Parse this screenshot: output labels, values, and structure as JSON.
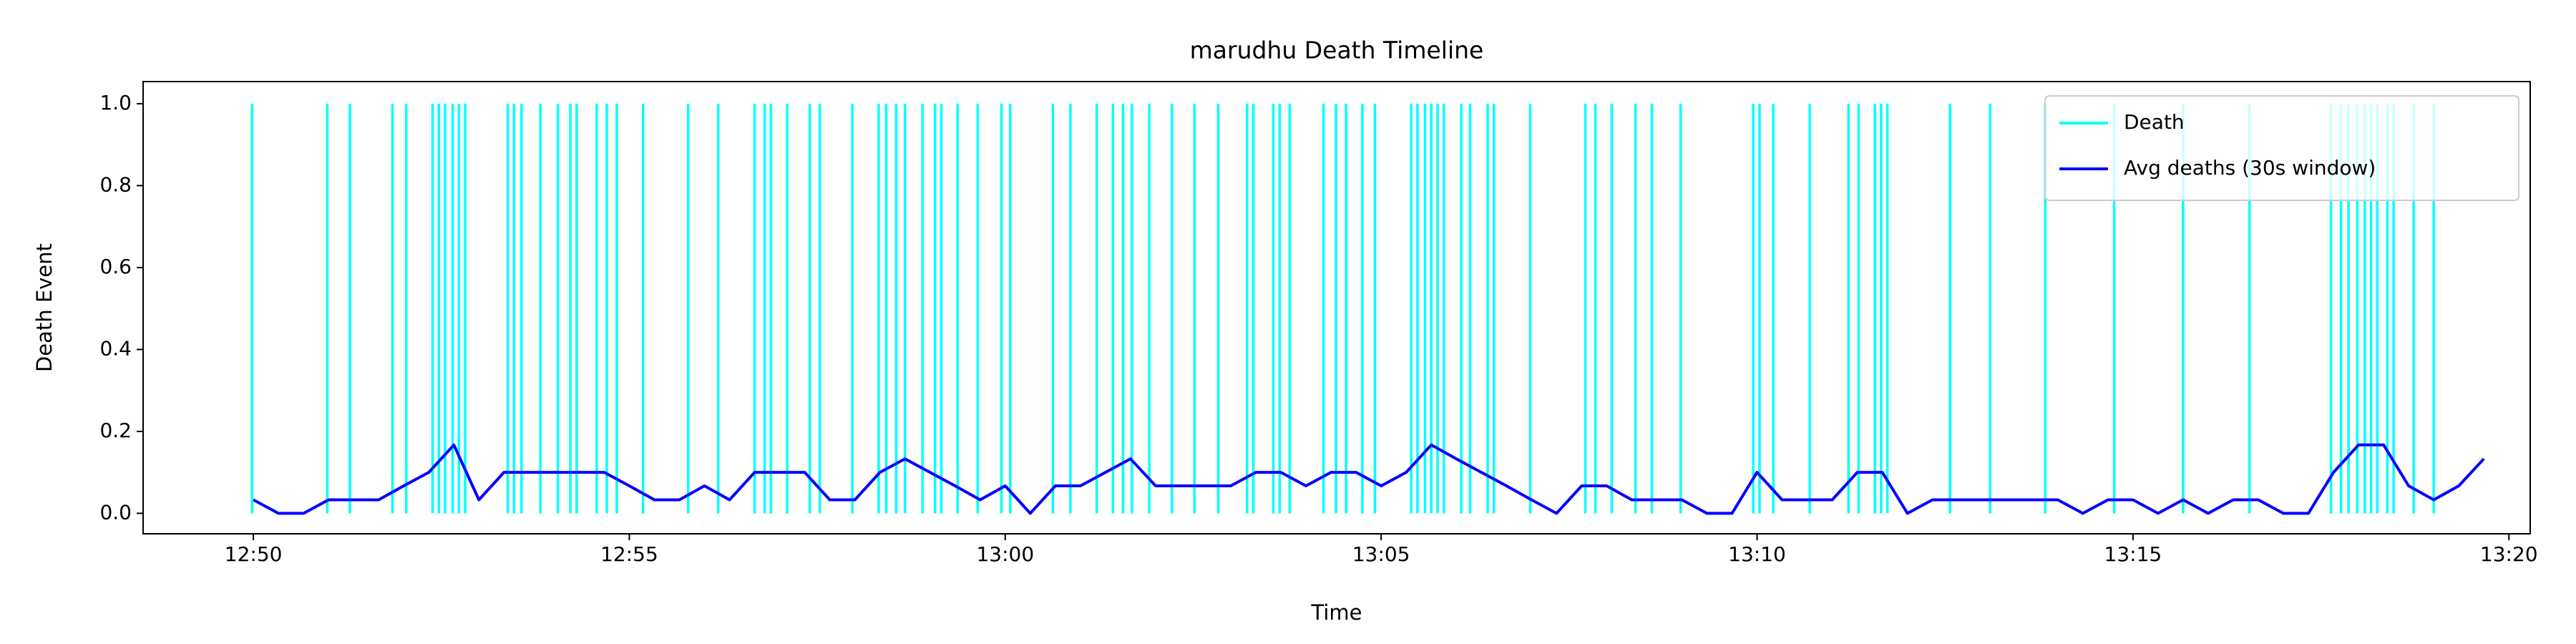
{
  "chart_data": {
    "type": "line",
    "title": "marudhu Death Timeline",
    "x_label": "Time",
    "y_label": "Death Event",
    "xlim": [
      "12:48:32",
      "13:20:17"
    ],
    "xticks": [
      "12:50",
      "12:55",
      "13:00",
      "13:05",
      "13:10",
      "13:15",
      "13:20"
    ],
    "ylim": [
      -0.05,
      1.054
    ],
    "yticks": [
      {
        "value": 0,
        "label": "0.0"
      },
      {
        "value": 0.2,
        "label": "0.2"
      },
      {
        "value": 0.4,
        "label": "0.4"
      },
      {
        "value": 0.6,
        "label": "0.6"
      },
      {
        "value": 0.8,
        "label": "0.8"
      },
      {
        "value": 1,
        "label": "1.0"
      }
    ],
    "grid": false,
    "legend": "upper right",
    "series": [
      {
        "name": "Death",
        "color": "#00ffff",
        "type": "vlines",
        "x": [
          "12:49:59",
          "12:50:59",
          "12:51:17",
          "12:51:51",
          "12:52:02",
          "12:52:23",
          "12:52:28",
          "12:52:33",
          "12:52:39",
          "12:52:44",
          "12:52:49",
          "12:53:23",
          "12:53:28",
          "12:53:34",
          "12:53:49",
          "12:54:03",
          "12:54:13",
          "12:54:18",
          "12:54:34",
          "12:54:42",
          "12:54:50",
          "12:55:11",
          "12:55:47",
          "12:56:11",
          "12:56:40",
          "12:56:48",
          "12:56:53",
          "12:57:06",
          "12:57:24",
          "12:57:32",
          "12:57:58",
          "12:58:19",
          "12:58:25",
          "12:58:33",
          "12:58:40",
          "12:58:54",
          "12:59:04",
          "12:59:09",
          "12:59:22",
          "12:59:38",
          "12:59:57",
          "13:00:04",
          "13:00:38",
          "13:00:52",
          "13:01:13",
          "13:01:26",
          "13:01:34",
          "13:01:41",
          "13:01:55",
          "13:02:13",
          "13:02:31",
          "13:02:50",
          "13:03:13",
          "13:03:18",
          "13:03:34",
          "13:03:39",
          "13:03:47",
          "13:04:14",
          "13:04:24",
          "13:04:32",
          "13:04:45",
          "13:04:55",
          "13:05:24",
          "13:05:29",
          "13:05:35",
          "13:05:40",
          "13:05:45",
          "13:05:50",
          "13:06:04",
          "13:06:11",
          "13:06:25",
          "13:06:30",
          "13:06:59",
          "13:07:43",
          "13:07:51",
          "13:08:04",
          "13:08:23",
          "13:08:36",
          "13:08:59",
          "13:09:57",
          "13:10:02",
          "13:10:13",
          "13:10:42",
          "13:11:13",
          "13:11:21",
          "13:11:34",
          "13:11:39",
          "13:11:44",
          "13:12:34",
          "13:13:06",
          "13:13:50",
          "13:14:45",
          "13:15:40",
          "13:16:33",
          "13:17:38",
          "13:17:46",
          "13:17:52",
          "13:17:59",
          "13:18:05",
          "13:18:10",
          "13:18:15",
          "13:18:23",
          "13:18:28",
          "13:18:44",
          "13:19:00"
        ],
        "values": [
          1,
          1,
          1,
          1,
          1,
          1,
          1,
          1,
          1,
          1,
          1,
          1,
          1,
          1,
          1,
          1,
          1,
          1,
          1,
          1,
          1,
          1,
          1,
          1,
          1,
          1,
          1,
          1,
          1,
          1,
          1,
          1,
          1,
          1,
          1,
          1,
          1,
          1,
          1,
          1,
          1,
          1,
          1,
          1,
          1,
          1,
          1,
          1,
          1,
          1,
          1,
          1,
          1,
          1,
          1,
          1,
          1,
          1,
          1,
          1,
          1,
          1,
          1,
          1,
          1,
          1,
          1,
          1,
          1,
          1,
          1,
          1,
          1,
          1,
          1,
          1,
          1,
          1,
          1,
          1,
          1,
          1,
          1,
          1,
          1,
          1,
          1,
          1,
          1,
          1,
          1,
          1,
          1,
          1,
          1,
          1,
          1,
          1,
          1,
          1,
          1,
          1,
          1,
          1,
          1
        ]
      },
      {
        "name": "Avg deaths (30s window)",
        "color": "#0000ff",
        "type": "line",
        "x": [
          "12:50:00",
          "12:50:20",
          "12:50:40",
          "12:51:00",
          "12:51:20",
          "12:51:40",
          "12:52:00",
          "12:52:20",
          "12:52:40",
          "12:53:00",
          "12:53:20",
          "12:53:40",
          "12:54:00",
          "12:54:20",
          "12:54:40",
          "12:55:00",
          "12:55:20",
          "12:55:40",
          "12:56:00",
          "12:56:20",
          "12:56:40",
          "12:57:00",
          "12:57:20",
          "12:57:40",
          "12:58:00",
          "12:58:20",
          "12:58:40",
          "12:59:00",
          "12:59:20",
          "12:59:40",
          "13:00:00",
          "13:00:20",
          "13:00:40",
          "13:01:00",
          "13:01:20",
          "13:01:40",
          "13:02:00",
          "13:02:20",
          "13:02:40",
          "13:03:00",
          "13:03:20",
          "13:03:40",
          "13:04:00",
          "13:04:20",
          "13:04:40",
          "13:05:00",
          "13:05:20",
          "13:05:40",
          "13:06:00",
          "13:06:20",
          "13:06:40",
          "13:07:00",
          "13:07:20",
          "13:07:40",
          "13:08:00",
          "13:08:20",
          "13:08:40",
          "13:09:00",
          "13:09:20",
          "13:09:40",
          "13:10:00",
          "13:10:20",
          "13:10:40",
          "13:11:00",
          "13:11:20",
          "13:11:40",
          "13:12:00",
          "13:12:20",
          "13:12:40",
          "13:13:00",
          "13:13:20",
          "13:13:40",
          "13:14:00",
          "13:14:20",
          "13:14:40",
          "13:15:00",
          "13:15:20",
          "13:15:40",
          "13:16:00",
          "13:16:20",
          "13:16:40",
          "13:17:00",
          "13:17:20",
          "13:17:40",
          "13:18:00",
          "13:18:20",
          "13:18:40",
          "13:19:00",
          "13:19:20",
          "13:19:40"
        ],
        "values": [
          0.033,
          0,
          0,
          0.033,
          0.033,
          0.033,
          0.067,
          0.1,
          0.167,
          0.033,
          0.1,
          0.1,
          0.1,
          0.1,
          0.1,
          0.067,
          0.033,
          0.033,
          0.067,
          0.033,
          0.1,
          0.1,
          0.1,
          0.033,
          0.033,
          0.1,
          0.133,
          0.1,
          0.067,
          0.033,
          0.067,
          0,
          0.067,
          0.067,
          0.1,
          0.133,
          0.067,
          0.067,
          0.067,
          0.067,
          0.1,
          0.1,
          0.067,
          0.1,
          0.1,
          0.067,
          0.1,
          0.167,
          0.133,
          0.1,
          0.067,
          0.033,
          0,
          0.067,
          0.067,
          0.033,
          0.033,
          0.033,
          0,
          0,
          0.1,
          0.033,
          0.033,
          0.033,
          0.1,
          0.1,
          0,
          0.033,
          0.033,
          0.033,
          0.033,
          0.033,
          0.033,
          0,
          0.033,
          0.033,
          0,
          0.033,
          0,
          0.033,
          0.033,
          0,
          0,
          0.1,
          0.167,
          0.167,
          0.067,
          0.033,
          0.067,
          0.133
        ]
      }
    ]
  }
}
